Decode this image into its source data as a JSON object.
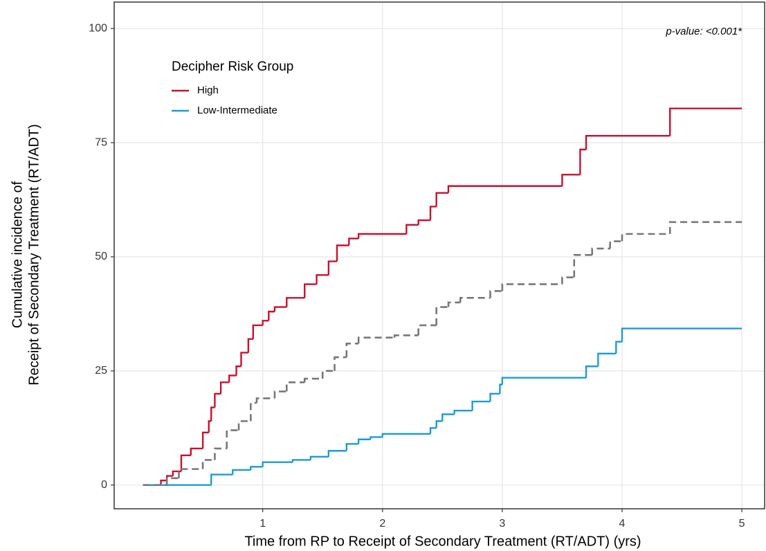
{
  "chart_data": {
    "type": "step",
    "xlabel": "Time from RP to Receipt of Secondary Treatment (RT/ADT) (yrs)",
    "ylabel": [
      "Cumulative incidence of",
      "Receipt of Secondary Treatment (RT/ADT)"
    ],
    "annotation": "p-value: <0.001*",
    "legend_title": "Decipher Risk Group",
    "legend_position": "top-left",
    "grid": true,
    "xlim": [
      -0.24,
      5.19
    ],
    "ylim": [
      -5.2,
      105.8
    ],
    "xticks": [
      1,
      2,
      3,
      4,
      5
    ],
    "yticks": [
      0,
      25,
      50,
      75,
      100
    ],
    "series": [
      {
        "name": "High",
        "color": "#c8102e",
        "dash": false,
        "x": [
          0,
          0.15,
          0.2,
          0.25,
          0.32,
          0.4,
          0.5,
          0.55,
          0.57,
          0.6,
          0.65,
          0.72,
          0.78,
          0.82,
          0.88,
          0.92,
          1.0,
          1.05,
          1.1,
          1.2,
          1.35,
          1.45,
          1.55,
          1.62,
          1.72,
          1.8,
          2.2,
          2.3,
          2.4,
          2.45,
          2.55,
          3.5,
          3.65,
          3.7,
          4.4,
          5.0
        ],
        "values": [
          0,
          1,
          2,
          3,
          6.5,
          8,
          11.5,
          14,
          17,
          20,
          22.5,
          24,
          26,
          29,
          32,
          35,
          36,
          38,
          39,
          41,
          44,
          46,
          49,
          52.5,
          54,
          55,
          57,
          58,
          61,
          64,
          65.5,
          68,
          73.5,
          76.5,
          82.5,
          82.5
        ]
      },
      {
        "name": "Low-Intermediate",
        "color": "#1a9bd7",
        "dash": false,
        "x": [
          0,
          0.57,
          0.75,
          0.9,
          1.0,
          1.25,
          1.4,
          1.55,
          1.7,
          1.8,
          1.9,
          2.0,
          2.4,
          2.45,
          2.5,
          2.6,
          2.75,
          2.9,
          2.98,
          3.0,
          3.7,
          3.8,
          3.95,
          4.0,
          5.0
        ],
        "values": [
          0,
          2.3,
          3.3,
          4,
          5,
          5.5,
          6.2,
          7.5,
          9,
          10,
          10.5,
          11.2,
          12.5,
          14,
          15.5,
          16.3,
          18.3,
          20,
          22,
          23.5,
          26,
          28.8,
          31.4,
          34.3,
          34.3
        ]
      },
      {
        "color": "#777777",
        "dash": true,
        "x": [
          0,
          0.2,
          0.3,
          0.5,
          0.6,
          0.7,
          0.8,
          0.9,
          0.95,
          1.1,
          1.2,
          1.35,
          1.5,
          1.6,
          1.7,
          1.8,
          2.1,
          2.3,
          2.45,
          2.55,
          2.65,
          2.9,
          3.0,
          3.5,
          3.6,
          3.75,
          3.9,
          4.0,
          4.4,
          5.0
        ],
        "values": [
          0,
          1.5,
          3.5,
          5.5,
          8,
          12,
          14,
          18,
          19,
          20.5,
          22.5,
          23.3,
          25,
          28,
          31,
          32.3,
          32.8,
          35,
          39,
          40,
          41,
          42.5,
          44,
          45.5,
          50.4,
          51.8,
          53.4,
          55,
          57.6,
          57.6
        ]
      }
    ]
  }
}
